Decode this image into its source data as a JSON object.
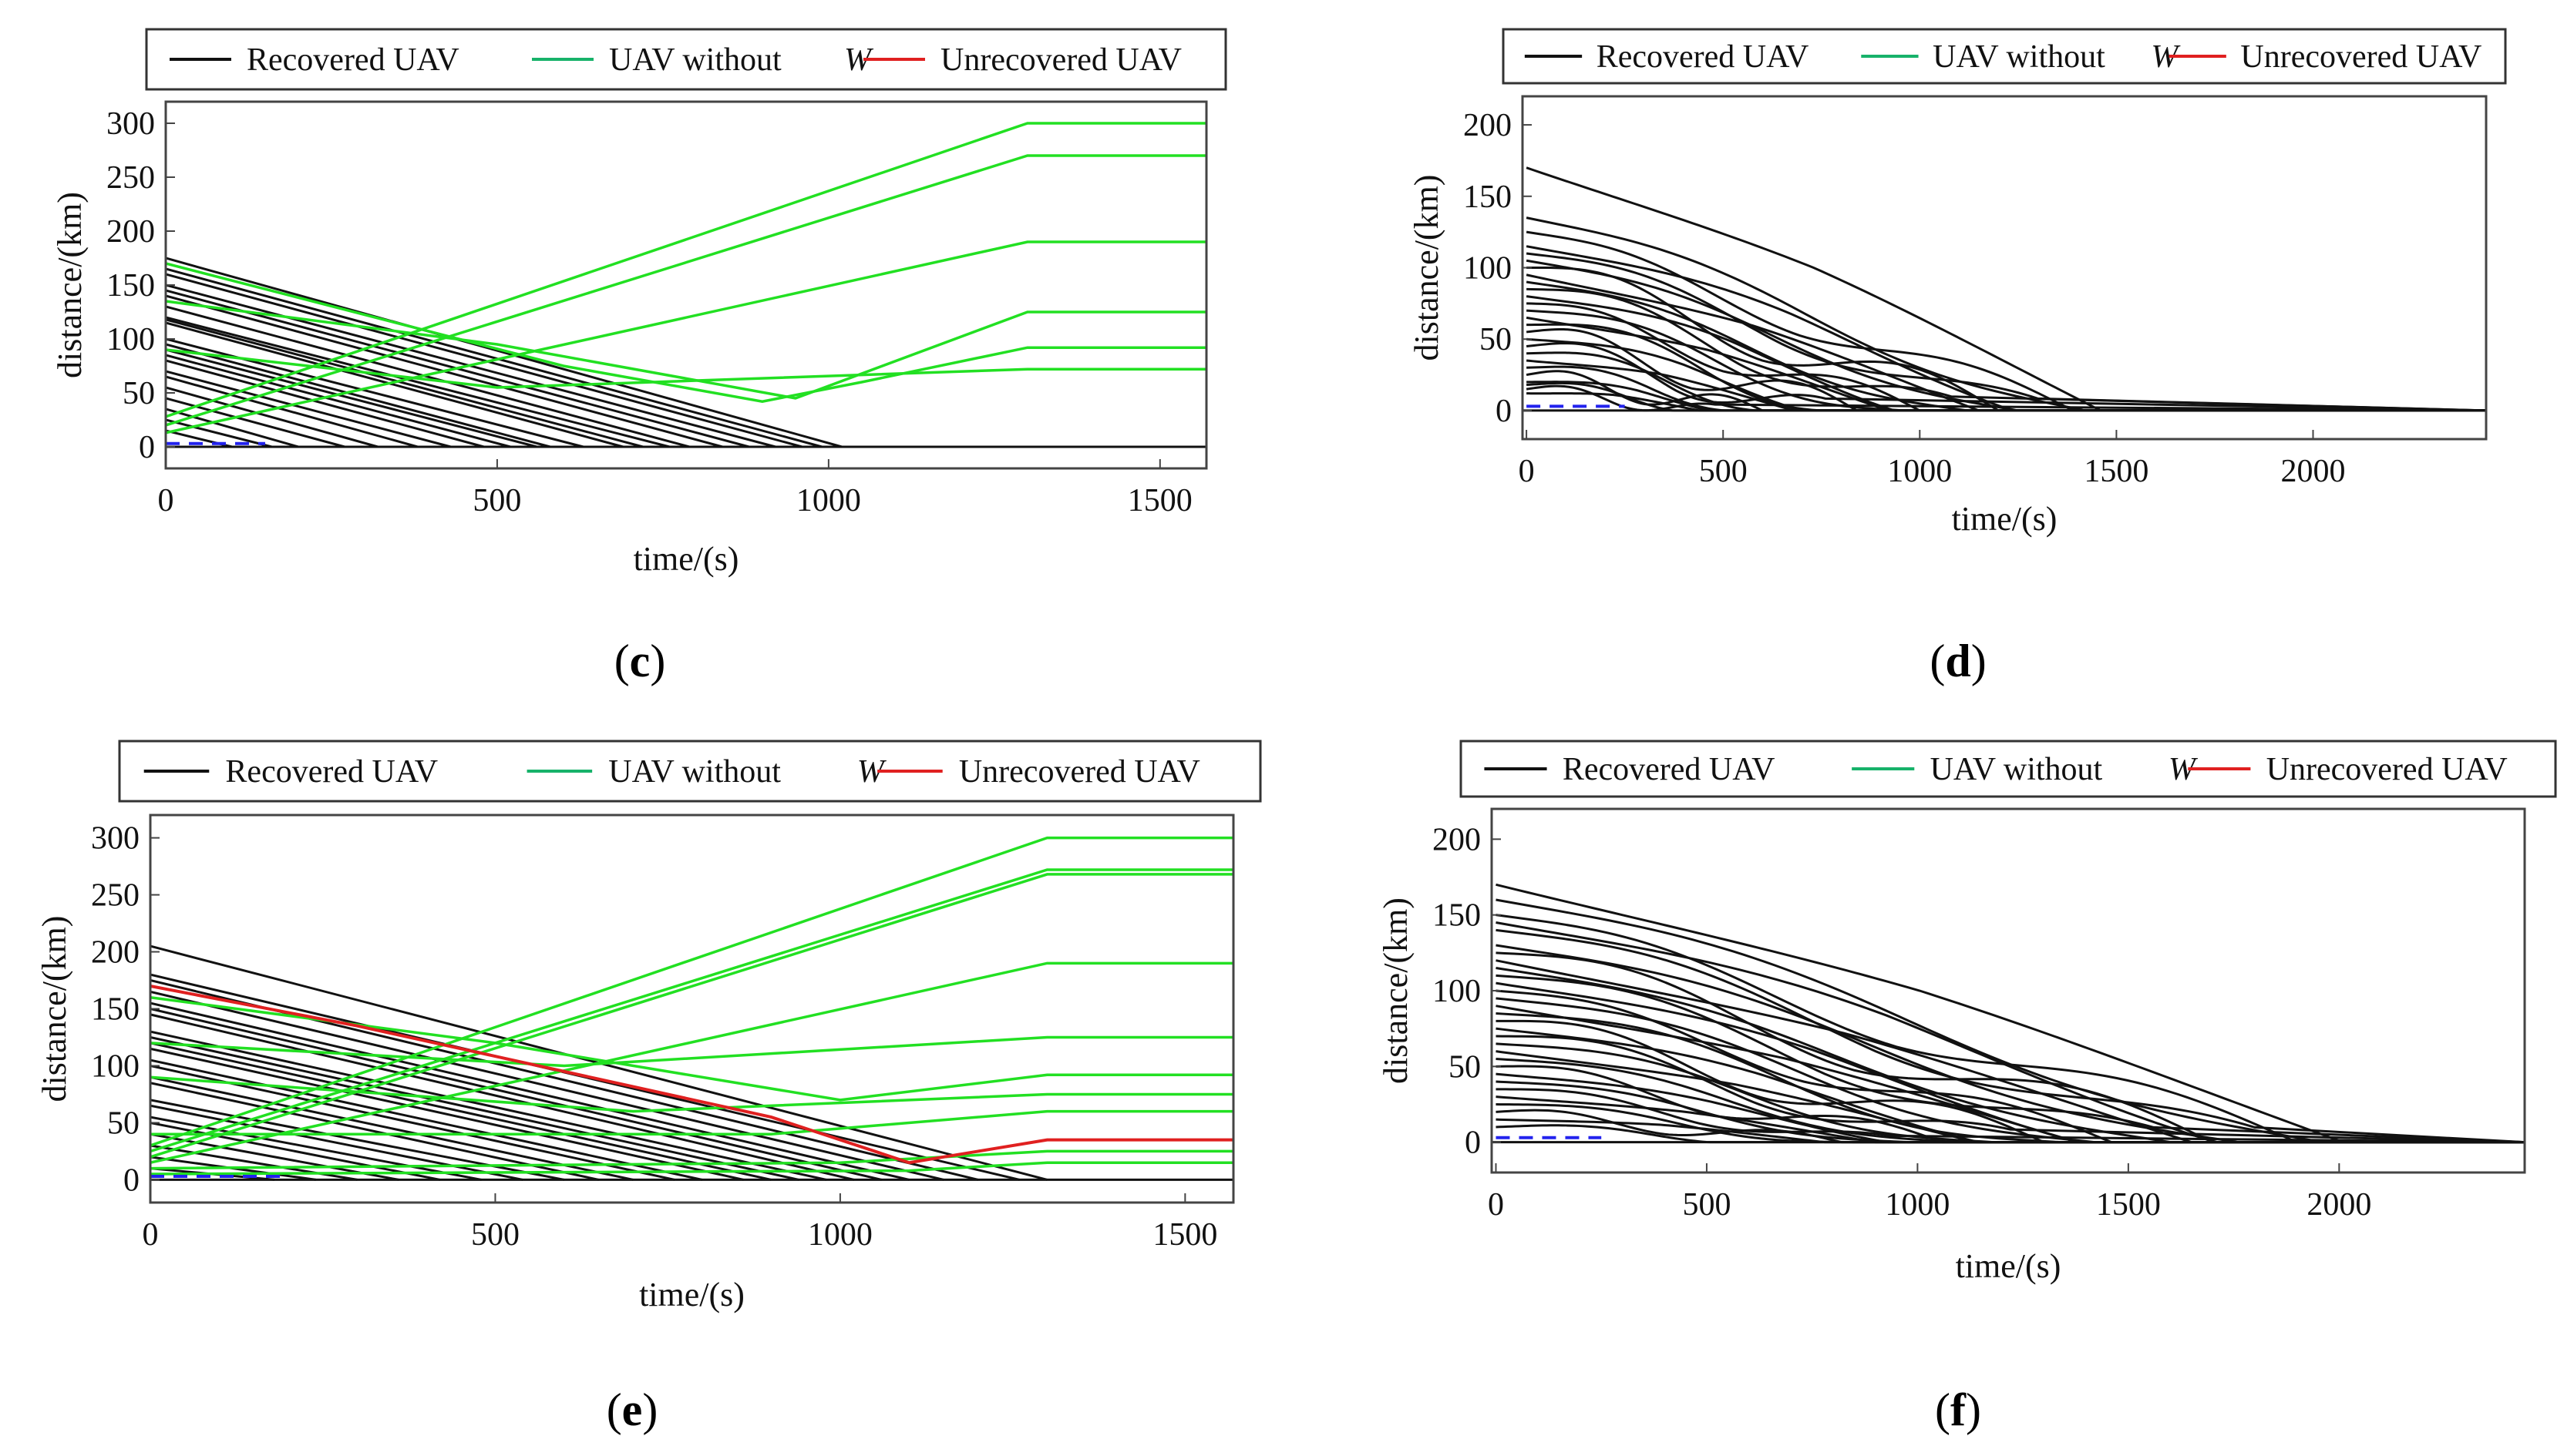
{
  "figure": {
    "legend_labels": {
      "recovered": "Recovered UAV",
      "without": "UAV without",
      "without_symbol": "W",
      "unrecovered": "Unrecovered UAV"
    },
    "colors": {
      "recovered": "#111111",
      "without": "#22e022",
      "unrecovered": "#e02020",
      "initial": "#2222ee",
      "legend_without": "#17b26a"
    }
  },
  "chart_data": [
    {
      "id": "c",
      "type": "line",
      "caption_letter": "c",
      "xlabel": "time/(s)",
      "ylabel": "distance/(km)",
      "xlim": [
        0,
        1570
      ],
      "ylim": [
        -20,
        320
      ],
      "xticks": [
        0,
        500,
        1000,
        1500
      ],
      "yticks": [
        0,
        50,
        100,
        150,
        200,
        250,
        300
      ],
      "initial_segment": {
        "x": [
          0,
          150
        ],
        "y": [
          3,
          3
        ]
      },
      "green_series": [
        [
          [
            0,
            28
          ],
          [
            1300,
            300
          ],
          [
            1570,
            300
          ]
        ],
        [
          [
            0,
            20
          ],
          [
            1300,
            270
          ],
          [
            1570,
            270
          ]
        ],
        [
          [
            0,
            13
          ],
          [
            1300,
            190
          ],
          [
            1570,
            190
          ]
        ],
        [
          [
            0,
            135
          ],
          [
            500,
            95
          ],
          [
            950,
            45
          ],
          [
            1300,
            125
          ],
          [
            1570,
            125
          ]
        ],
        [
          [
            0,
            170
          ],
          [
            600,
            75
          ],
          [
            900,
            42
          ],
          [
            1050,
            60
          ],
          [
            1300,
            92
          ],
          [
            1570,
            92
          ]
        ],
        [
          [
            0,
            90
          ],
          [
            500,
            55
          ],
          [
            1300,
            72
          ],
          [
            1570,
            72
          ]
        ]
      ],
      "recovered_starts": [
        [
          175,
          1020
        ],
        [
          165,
          990
        ],
        [
          160,
          960
        ],
        [
          150,
          920
        ],
        [
          145,
          880
        ],
        [
          140,
          840
        ],
        [
          130,
          790
        ],
        [
          120,
          760
        ],
        [
          118,
          720
        ],
        [
          115,
          690
        ],
        [
          100,
          630
        ],
        [
          95,
          580
        ],
        [
          90,
          560
        ],
        [
          85,
          520
        ],
        [
          80,
          480
        ],
        [
          70,
          430
        ],
        [
          65,
          380
        ],
        [
          55,
          320
        ],
        [
          45,
          270
        ],
        [
          35,
          200
        ],
        [
          25,
          160
        ],
        [
          15,
          100
        ]
      ],
      "red_series": []
    },
    {
      "id": "d",
      "type": "line",
      "caption_letter": "d",
      "xlabel": "time/(s)",
      "ylabel": "distance/(km)",
      "xlim": [
        -10,
        2440
      ],
      "ylim": [
        -20,
        220
      ],
      "xticks": [
        0,
        500,
        1000,
        1500,
        2000
      ],
      "yticks": [
        0,
        50,
        100,
        150,
        200
      ],
      "initial_segment": {
        "x": [
          0,
          250
        ],
        "y": [
          3,
          3
        ]
      },
      "wavy_series": [
        [
          170,
          1460,
          15,
          1
        ],
        [
          135,
          1420,
          12,
          2
        ],
        [
          125,
          1390,
          10,
          3
        ],
        [
          115,
          1350,
          14,
          1.5
        ],
        [
          110,
          1300,
          12,
          2.5
        ],
        [
          105,
          1250,
          10,
          2
        ],
        [
          100,
          1200,
          15,
          3
        ],
        [
          95,
          1150,
          12,
          1
        ],
        [
          90,
          1120,
          10,
          2
        ],
        [
          85,
          1080,
          14,
          2.5
        ],
        [
          80,
          1040,
          12,
          1.5
        ],
        [
          75,
          1000,
          10,
          3
        ],
        [
          70,
          960,
          12,
          2
        ],
        [
          65,
          920,
          10,
          1
        ],
        [
          60,
          880,
          14,
          2
        ],
        [
          55,
          840,
          12,
          3
        ],
        [
          50,
          800,
          10,
          1.5
        ],
        [
          45,
          760,
          12,
          2.5
        ],
        [
          40,
          720,
          10,
          2
        ],
        [
          35,
          680,
          8,
          1
        ],
        [
          30,
          640,
          8,
          2
        ],
        [
          25,
          600,
          8,
          3
        ],
        [
          20,
          560,
          6,
          1.5
        ],
        [
          18,
          520,
          6,
          2
        ],
        [
          15,
          480,
          6,
          2.5
        ],
        [
          12,
          440,
          5,
          1
        ]
      ]
    },
    {
      "id": "e",
      "type": "line",
      "caption_letter": "e",
      "xlabel": "time/(s)",
      "ylabel": "distance/(km)",
      "xlim": [
        0,
        1570
      ],
      "ylim": [
        -20,
        320
      ],
      "xticks": [
        0,
        500,
        1000,
        1500
      ],
      "yticks": [
        0,
        50,
        100,
        150,
        200,
        250,
        300
      ],
      "initial_segment": {
        "x": [
          0,
          200
        ],
        "y": [
          3,
          3
        ]
      },
      "green_series": [
        [
          [
            0,
            30
          ],
          [
            1300,
            300
          ],
          [
            1570,
            300
          ]
        ],
        [
          [
            0,
            25
          ],
          [
            1300,
            272
          ],
          [
            1570,
            272
          ]
        ],
        [
          [
            0,
            20
          ],
          [
            1300,
            268
          ],
          [
            1570,
            268
          ]
        ],
        [
          [
            0,
            15
          ],
          [
            1300,
            190
          ],
          [
            1570,
            190
          ]
        ],
        [
          [
            0,
            120
          ],
          [
            600,
            100
          ],
          [
            1300,
            125
          ],
          [
            1570,
            125
          ]
        ],
        [
          [
            0,
            160
          ],
          [
            500,
            120
          ],
          [
            1000,
            70
          ],
          [
            1300,
            92
          ],
          [
            1570,
            92
          ]
        ],
        [
          [
            0,
            90
          ],
          [
            700,
            60
          ],
          [
            1300,
            75
          ],
          [
            1570,
            75
          ]
        ],
        [
          [
            0,
            40
          ],
          [
            900,
            40
          ],
          [
            1300,
            60
          ],
          [
            1570,
            60
          ]
        ],
        [
          [
            0,
            10
          ],
          [
            1000,
            15
          ],
          [
            1300,
            25
          ],
          [
            1570,
            25
          ]
        ],
        [
          [
            0,
            5
          ],
          [
            1100,
            8
          ],
          [
            1300,
            15
          ],
          [
            1570,
            15
          ]
        ]
      ],
      "recovered_starts": [
        [
          205,
          1300
        ],
        [
          180,
          1260
        ],
        [
          175,
          1200
        ],
        [
          165,
          1150
        ],
        [
          155,
          1100
        ],
        [
          150,
          1060
        ],
        [
          145,
          1020
        ],
        [
          130,
          980
        ],
        [
          125,
          940
        ],
        [
          120,
          900
        ],
        [
          115,
          860
        ],
        [
          105,
          800
        ],
        [
          100,
          760
        ],
        [
          90,
          700
        ],
        [
          85,
          650
        ],
        [
          70,
          600
        ],
        [
          65,
          540
        ],
        [
          55,
          480
        ],
        [
          50,
          420
        ],
        [
          40,
          360
        ],
        [
          30,
          300
        ],
        [
          20,
          240
        ],
        [
          10,
          180
        ]
      ],
      "red_series": [
        [
          [
            0,
            170
          ],
          [
            300,
            135
          ],
          [
            600,
            95
          ],
          [
            900,
            55
          ],
          [
            1100,
            15
          ],
          [
            1200,
            25
          ],
          [
            1300,
            35
          ],
          [
            1570,
            35
          ]
        ]
      ]
    },
    {
      "id": "f",
      "type": "line",
      "caption_letter": "f",
      "xlabel": "time/(s)",
      "ylabel": "distance/(km)",
      "xlim": [
        -10,
        2440
      ],
      "ylim": [
        -20,
        220
      ],
      "xticks": [
        0,
        500,
        1000,
        1500,
        2000
      ],
      "yticks": [
        0,
        50,
        100,
        150,
        200
      ],
      "initial_segment": {
        "x": [
          0,
          250
        ],
        "y": [
          3,
          3
        ]
      },
      "wavy_series": [
        [
          170,
          2010,
          15,
          1
        ],
        [
          160,
          1960,
          14,
          2
        ],
        [
          150,
          1900,
          12,
          3
        ],
        [
          145,
          1850,
          16,
          1.5
        ],
        [
          140,
          1800,
          14,
          2.5
        ],
        [
          130,
          1760,
          12,
          2
        ],
        [
          125,
          1700,
          15,
          3
        ],
        [
          120,
          1650,
          12,
          1
        ],
        [
          115,
          1600,
          10,
          2
        ],
        [
          110,
          1560,
          14,
          2.5
        ],
        [
          105,
          1500,
          12,
          1.5
        ],
        [
          100,
          1460,
          10,
          3
        ],
        [
          95,
          1420,
          12,
          2
        ],
        [
          90,
          1380,
          10,
          1
        ],
        [
          85,
          1340,
          14,
          2
        ],
        [
          80,
          1300,
          12,
          3
        ],
        [
          75,
          1260,
          10,
          1.5
        ],
        [
          70,
          1220,
          12,
          2.5
        ],
        [
          65,
          1180,
          10,
          2
        ],
        [
          60,
          1140,
          8,
          1
        ],
        [
          55,
          1100,
          8,
          2
        ],
        [
          50,
          1060,
          8,
          3
        ],
        [
          45,
          1020,
          6,
          1.5
        ],
        [
          40,
          980,
          6,
          2
        ],
        [
          35,
          940,
          6,
          2.5
        ],
        [
          30,
          900,
          5,
          1
        ],
        [
          25,
          860,
          5,
          2
        ],
        [
          20,
          820,
          5,
          3
        ],
        [
          15,
          780,
          4,
          1
        ],
        [
          10,
          740,
          4,
          2
        ]
      ]
    }
  ]
}
